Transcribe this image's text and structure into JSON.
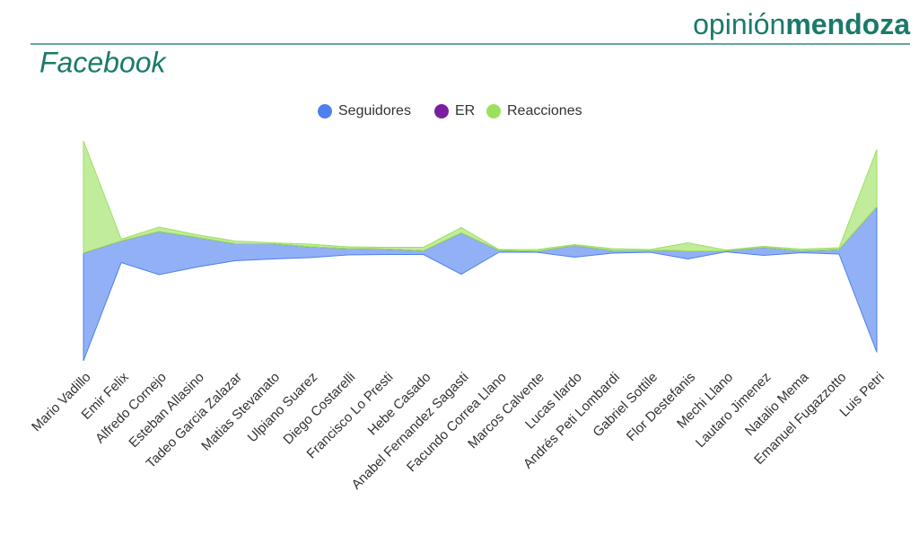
{
  "brand": {
    "light": "opinión",
    "bold": "mendoza"
  },
  "chart_data": {
    "type": "streamgraph",
    "title": "Facebook",
    "categories": [
      "Mario Vadillo",
      "Emir Felix",
      "Alfredo Cornejo",
      "Esteban Allasino",
      "Tadeo Garcia Zalazar",
      "Matias Stevanato",
      "Ulpiano Suarez",
      "Diego Costarelli",
      "Francisco Lo Presti",
      "Hebe Casado",
      "Anabel Fernandez Sagasti",
      "Facundo Correa Llano",
      "Marcos Calvente",
      "Lucas Ilardo",
      "Andrés Peti Lombardi",
      "Gabriel Sottile",
      "Flor Destefanis",
      "Mechi Llano",
      "Lautaro Jimenez",
      "Natalio Mema",
      "Emanuel Fugazzotto",
      "Luis Petri"
    ],
    "series": [
      {
        "name": "Seguidores",
        "color": "#4f80f0",
        "values": [
          120,
          24,
          48,
          33,
          19,
          17,
          12,
          7,
          6,
          4,
          46,
          2,
          1,
          13,
          3,
          2,
          9,
          1,
          9,
          2,
          5,
          162
        ]
      },
      {
        "name": "ER",
        "color": "#7b1fa2",
        "values": [
          0,
          0,
          0,
          0,
          0,
          0,
          0,
          0,
          0,
          0,
          0,
          0,
          0,
          0,
          0,
          0,
          0,
          0,
          0,
          0,
          0,
          0
        ]
      },
      {
        "name": "Reacciones",
        "color": "#9be15d",
        "values": [
          125,
          2,
          5,
          3,
          3,
          1,
          3,
          2,
          2,
          4,
          6,
          1,
          2,
          1,
          2,
          1,
          9,
          1,
          1,
          2,
          2,
          64
        ]
      }
    ],
    "legend": "top"
  }
}
